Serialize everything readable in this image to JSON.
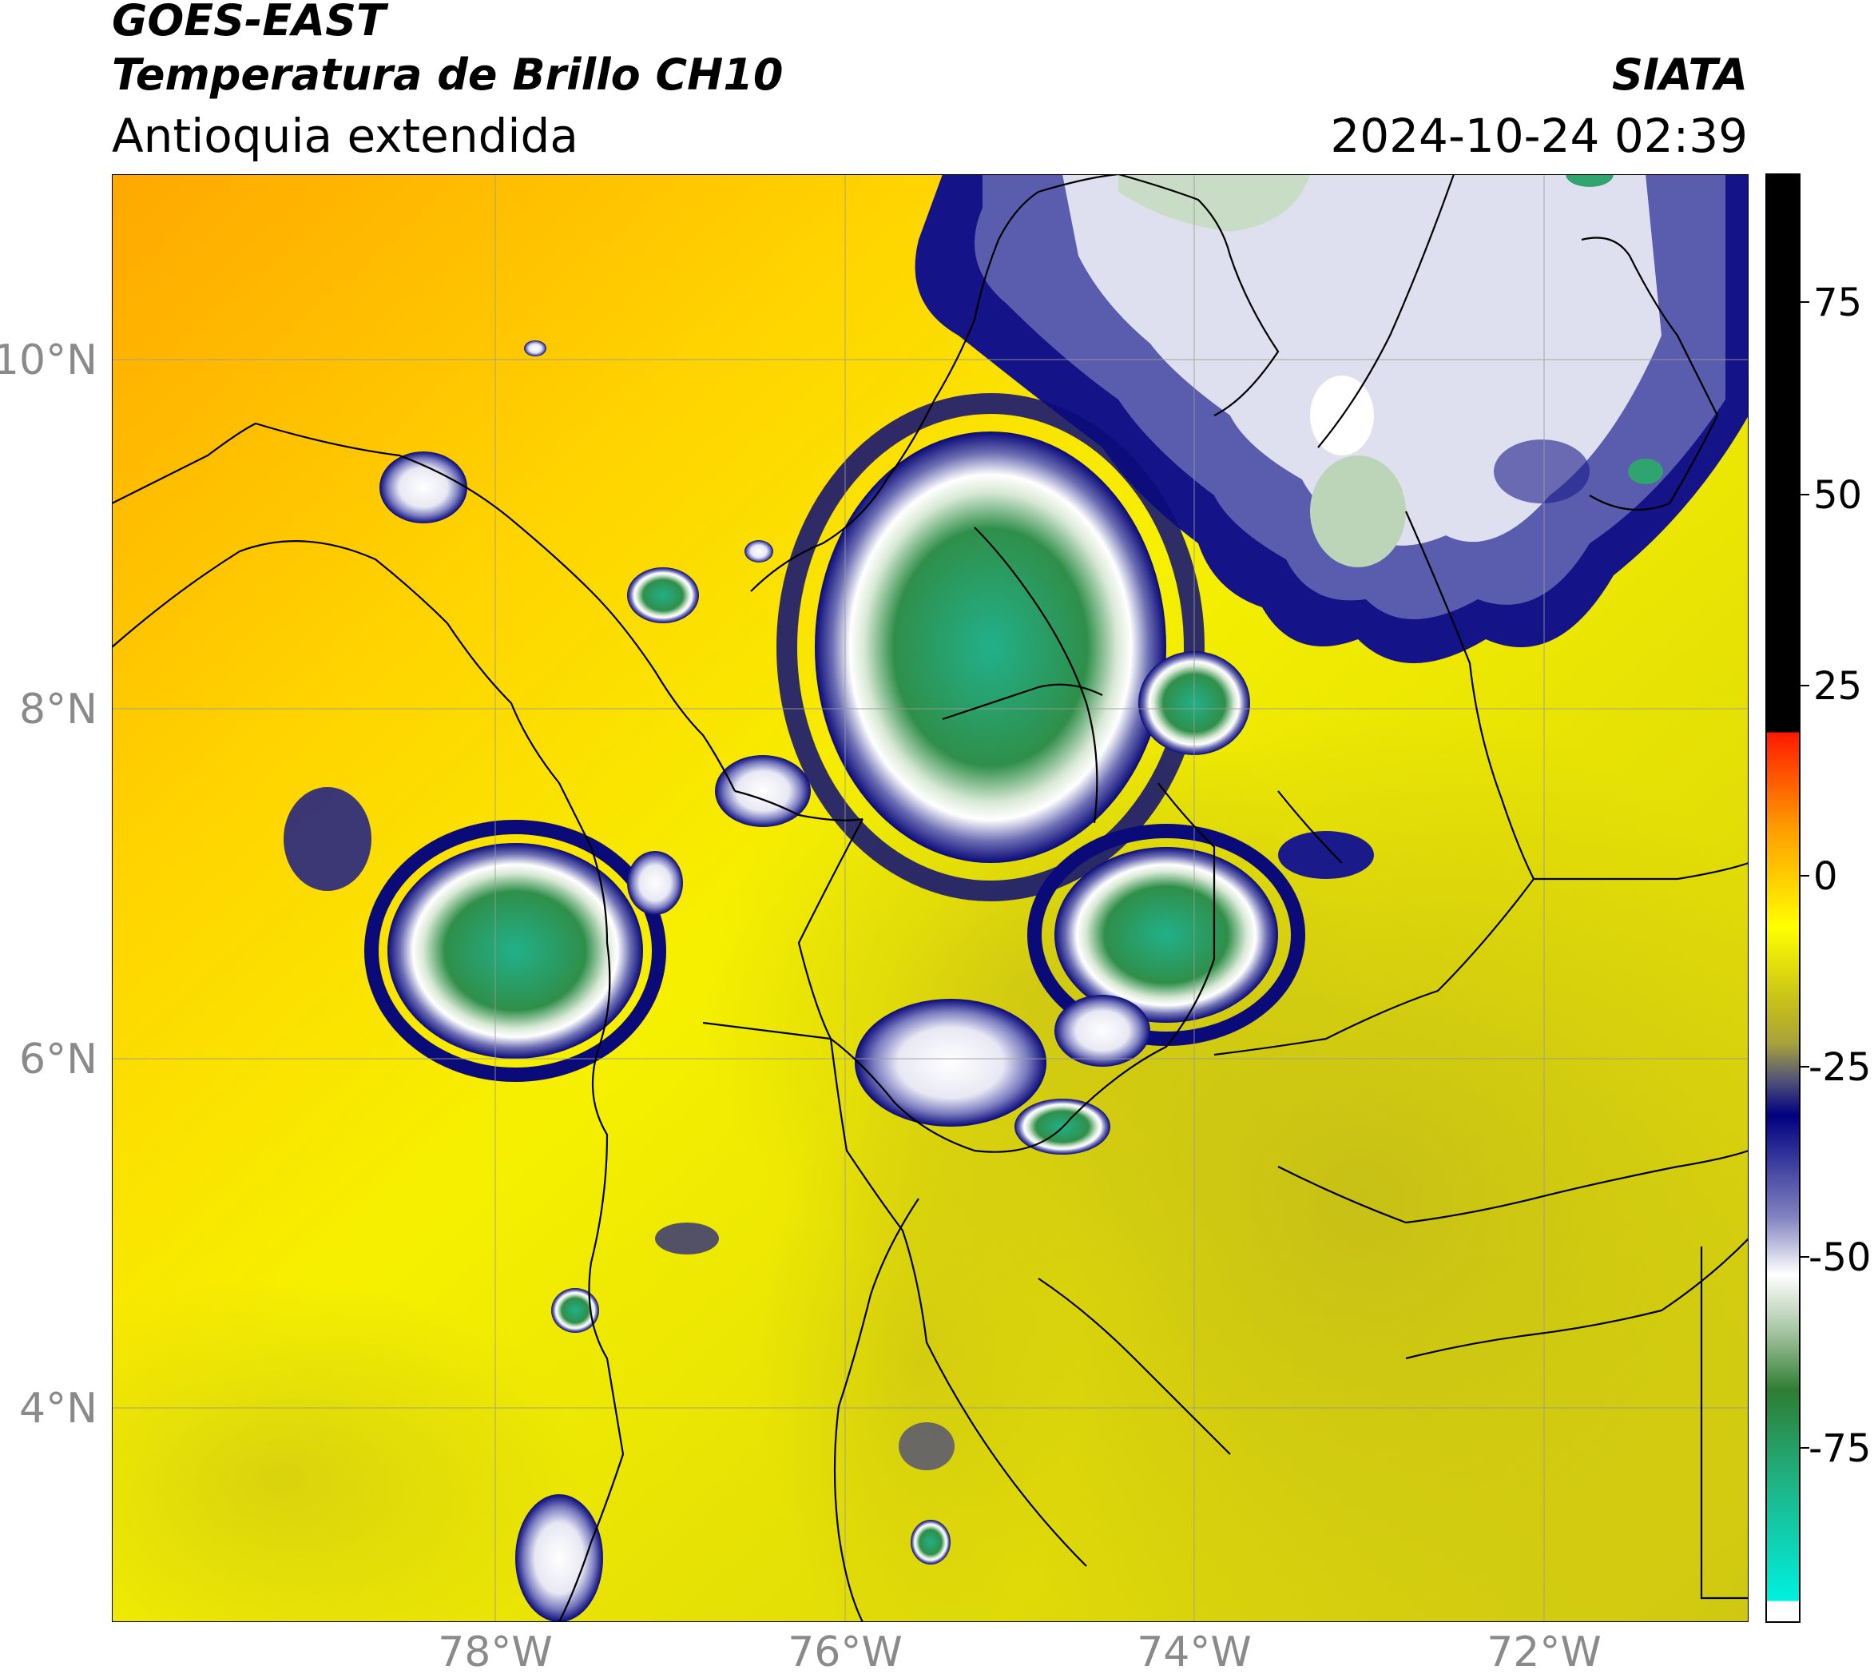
{
  "header": {
    "satellite": "GOES-EAST",
    "product": "Temperatura de Brillo CH10",
    "region": "Antioquia extendida",
    "organization": "SIATA",
    "datetime": "2024-10-24 02:39"
  },
  "axes": {
    "latitude_labels": [
      "10°N",
      "8°N",
      "6°N",
      "4°N"
    ],
    "longitude_labels": [
      "78°W",
      "76°W",
      "74°W",
      "72°W"
    ]
  },
  "colorbar": {
    "ticks": [
      "75",
      "50",
      "25",
      "0",
      "-25",
      "-50",
      "-75"
    ],
    "colors": {
      "warm_top": "#000000",
      "red": "#ff2a00",
      "orange": "#ff9900",
      "yellow": "#ffff00",
      "olive": "#b8b20a",
      "navy": "#000080",
      "white": "#ffffff",
      "green": "#2e8b3a",
      "cyan": "#00f0e0"
    }
  },
  "map_colors": {
    "ocean_warm": "#ffb000",
    "land_yellow": "#f2ef00",
    "land_olive": "#c8c20f",
    "cloud_edge": "#101080",
    "cloud_mid": "#ffffff",
    "cloud_core": "#2f9a6a"
  }
}
